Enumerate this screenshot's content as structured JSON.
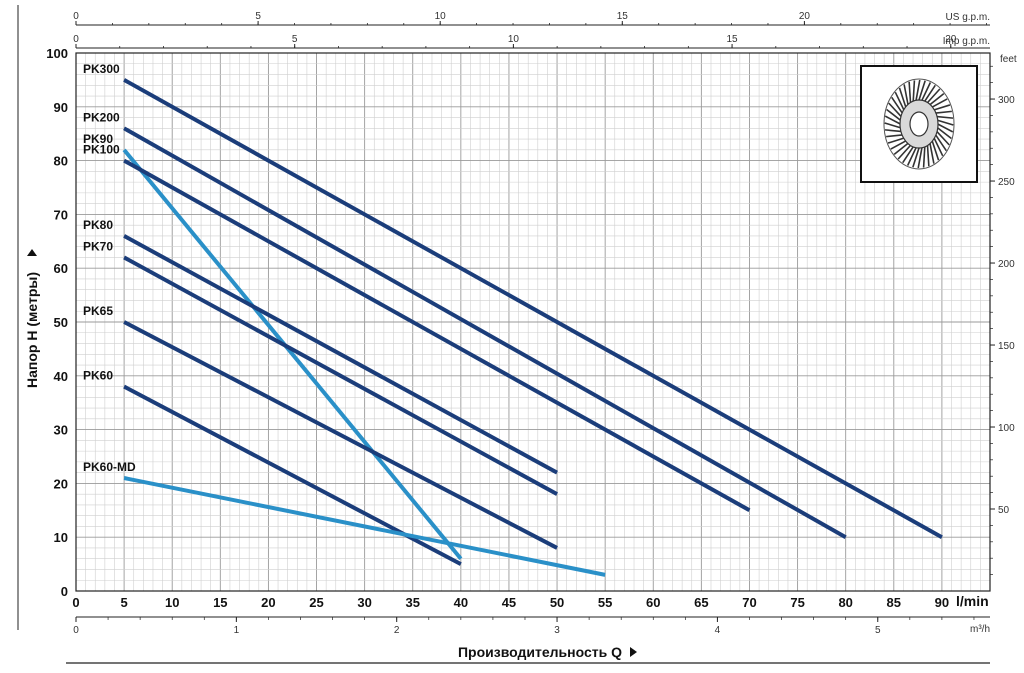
{
  "chart_data": {
    "type": "line",
    "title": "",
    "xlabel": "Производительность Q",
    "ylabel": "Напор H (метры)",
    "x_unit": "l/min",
    "xlim": [
      0,
      95
    ],
    "ylim": [
      0,
      100
    ],
    "x_ticks": [
      0,
      5,
      10,
      15,
      20,
      25,
      30,
      35,
      40,
      45,
      50,
      55,
      60,
      65,
      70,
      75,
      80,
      85,
      90
    ],
    "y_ticks": [
      0,
      10,
      20,
      30,
      40,
      50,
      60,
      70,
      80,
      90,
      100
    ],
    "secondary_axes": {
      "us_gpm": {
        "label": "US g.p.m.",
        "ticks": [
          0,
          5,
          10,
          15,
          20
        ],
        "factor": 0.264172
      },
      "imp_gpm": {
        "label": "Imp g.p.m.",
        "ticks": [
          0,
          5,
          10,
          15,
          20
        ],
        "factor": 0.219969
      },
      "feet": {
        "label": "feet",
        "ticks": [
          50,
          100,
          150,
          200,
          250,
          300
        ],
        "factor": 3.28084
      },
      "m3h": {
        "label": "m³/h",
        "ticks": [
          0,
          1,
          2,
          3,
          4,
          5
        ],
        "factor": 0.06
      }
    },
    "grid": true,
    "series": [
      {
        "name": "PK300",
        "x": [
          5,
          90
        ],
        "y": [
          95,
          10
        ],
        "color": "#1b3d7a"
      },
      {
        "name": "PK200",
        "x": [
          5,
          80
        ],
        "y": [
          86,
          10
        ],
        "color": "#1b3d7a"
      },
      {
        "name": "PK90",
        "x": [
          5,
          40
        ],
        "y": [
          82,
          6
        ],
        "color": "#2a90c8"
      },
      {
        "name": "PK100",
        "x": [
          5,
          70
        ],
        "y": [
          80,
          15
        ],
        "color": "#1b3d7a"
      },
      {
        "name": "PK80",
        "x": [
          5,
          50
        ],
        "y": [
          66,
          22
        ],
        "color": "#1b3d7a"
      },
      {
        "name": "PK70",
        "x": [
          5,
          50
        ],
        "y": [
          62,
          18
        ],
        "color": "#1b3d7a"
      },
      {
        "name": "PK65",
        "x": [
          5,
          50
        ],
        "y": [
          50,
          8
        ],
        "color": "#1b3d7a"
      },
      {
        "name": "PK60",
        "x": [
          5,
          40
        ],
        "y": [
          38,
          5
        ],
        "color": "#1b3d7a"
      },
      {
        "name": "PK60-MD",
        "x": [
          5,
          55
        ],
        "y": [
          21,
          3
        ],
        "color": "#2a90c8"
      }
    ]
  },
  "impeller_icon": "impeller-icon"
}
